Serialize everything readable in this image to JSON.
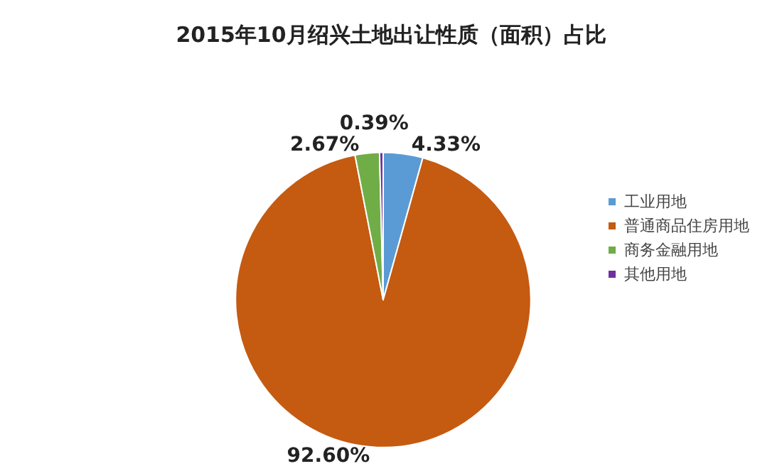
{
  "chart_data": {
    "type": "pie",
    "title": "2015年10月绍兴土地出让性质（面积）占比",
    "categories": [
      "工业用地",
      "普通商品住房用地",
      "商务金融用地",
      "其他用地"
    ],
    "values": [
      4.33,
      92.6,
      2.67,
      0.39
    ],
    "colors": [
      "#5b9bd5",
      "#c55a11",
      "#70ad47",
      "#7030a0"
    ],
    "value_labels": [
      "4.33%",
      "92.60%",
      "2.67%",
      "0.39%"
    ],
    "legend": "right"
  }
}
